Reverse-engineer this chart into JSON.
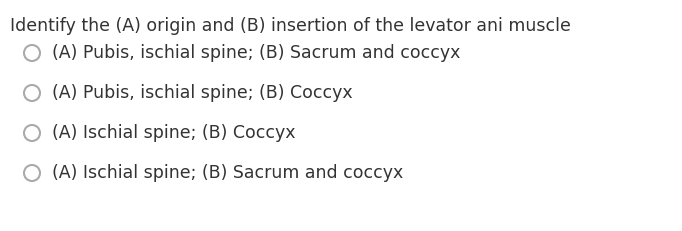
{
  "question": "Identify the (A) origin and (B) insertion of the levator ani muscle",
  "options": [
    "(A) Pubis, ischial spine; (B) Sacrum and coccyx",
    "(A) Pubis, ischial spine; (B) Coccyx",
    "(A) Ischial spine; (B) Coccyx",
    "(A) Ischial spine; (B) Sacrum and coccyx"
  ],
  "background_color": "#ffffff",
  "text_color": "#333333",
  "circle_color": "#aaaaaa",
  "question_fontsize": 12.5,
  "option_fontsize": 12.5,
  "font_family": "DejaVu Sans"
}
